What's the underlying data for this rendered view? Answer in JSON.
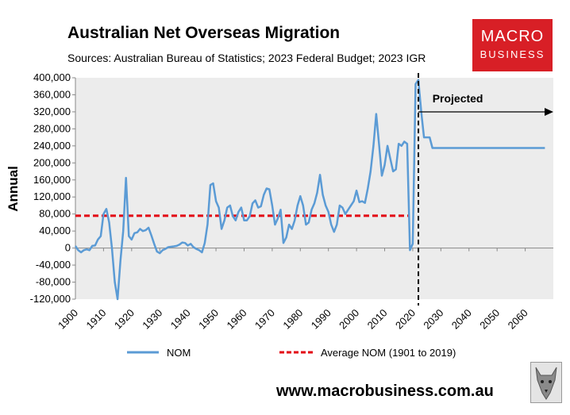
{
  "header": {
    "title": "Australian Net Overseas Migration",
    "subtitle": "Sources: Australian Bureau of Statistics; 2023 Federal Budget; 2023 IGR"
  },
  "logo": {
    "line1": "MACRO",
    "line2": "BUSINESS"
  },
  "footer": {
    "website": "www.macrobusiness.com.au"
  },
  "colors": {
    "series": "#5b9bd5",
    "average": "#e30613",
    "plot_bg": "#ececec",
    "logo_bg": "#d81f26"
  },
  "chart_data": {
    "type": "line",
    "title": "Australian Net Overseas Migration",
    "ylabel": "Annual",
    "xlabel": "",
    "ylim": [
      -120000,
      400000
    ],
    "xlim": [
      1900,
      2070
    ],
    "x_ticks": [
      "1900",
      "1910",
      "1920",
      "1930",
      "1940",
      "1950",
      "1960",
      "1970",
      "1980",
      "1990",
      "2000",
      "2010",
      "2020",
      "2030",
      "2040",
      "2050",
      "2060"
    ],
    "y_ticks": [
      "400,000",
      "360,000",
      "320,000",
      "280,000",
      "240,000",
      "200,000",
      "160,000",
      "120,000",
      "80,000",
      "40,000",
      "0",
      "-40,000",
      "-80,000",
      "-120,000"
    ],
    "series": [
      {
        "name": "NOM",
        "style": "solid",
        "x": [
          1900,
          1901,
          1902,
          1903,
          1904,
          1905,
          1906,
          1907,
          1908,
          1909,
          1910,
          1911,
          1912,
          1913,
          1914,
          1915,
          1916,
          1917,
          1918,
          1919,
          1920,
          1921,
          1922,
          1923,
          1924,
          1925,
          1926,
          1927,
          1928,
          1929,
          1930,
          1931,
          1932,
          1933,
          1934,
          1935,
          1936,
          1937,
          1938,
          1939,
          1940,
          1941,
          1942,
          1943,
          1944,
          1945,
          1946,
          1947,
          1948,
          1949,
          1950,
          1951,
          1952,
          1953,
          1954,
          1955,
          1956,
          1957,
          1958,
          1959,
          1960,
          1961,
          1962,
          1963,
          1964,
          1965,
          1966,
          1967,
          1968,
          1969,
          1970,
          1971,
          1972,
          1973,
          1974,
          1975,
          1976,
          1977,
          1978,
          1979,
          1980,
          1981,
          1982,
          1983,
          1984,
          1985,
          1986,
          1987,
          1988,
          1989,
          1990,
          1991,
          1992,
          1993,
          1994,
          1995,
          1996,
          1997,
          1998,
          1999,
          2000,
          2001,
          2002,
          2003,
          2004,
          2005,
          2006,
          2007,
          2008,
          2009,
          2010,
          2011,
          2012,
          2013,
          2014,
          2015,
          2016,
          2017,
          2018,
          2019,
          2020,
          2021,
          2022,
          2023,
          2024,
          2025,
          2026,
          2027,
          2030,
          2040,
          2050,
          2060,
          2067
        ],
        "y": [
          5000,
          -5000,
          -10000,
          -5000,
          -3000,
          -5000,
          5000,
          6000,
          20000,
          28000,
          80000,
          92000,
          60000,
          0,
          -80000,
          -120000,
          -30000,
          40000,
          165000,
          28000,
          20000,
          35000,
          37000,
          45000,
          40000,
          42000,
          48000,
          30000,
          10000,
          -8000,
          -12000,
          -5000,
          -2000,
          2000,
          3000,
          4000,
          5000,
          8000,
          13000,
          12000,
          6000,
          10000,
          2000,
          -2000,
          -5000,
          -10000,
          12000,
          55000,
          148000,
          152000,
          110000,
          95000,
          45000,
          65000,
          95000,
          100000,
          75000,
          65000,
          85000,
          95000,
          65000,
          65000,
          75000,
          105000,
          112000,
          95000,
          98000,
          125000,
          140000,
          138000,
          100000,
          55000,
          70000,
          90000,
          12000,
          25000,
          55000,
          45000,
          65000,
          100000,
          122000,
          100000,
          55000,
          60000,
          90000,
          105000,
          130000,
          172000,
          125000,
          100000,
          85000,
          55000,
          38000,
          55000,
          100000,
          95000,
          80000,
          90000,
          100000,
          110000,
          135000,
          108000,
          110000,
          106000,
          140000,
          180000,
          240000,
          315000,
          245000,
          170000,
          195000,
          240000,
          210000,
          180000,
          185000,
          245000,
          240000,
          250000,
          245000,
          -5000,
          10000,
          385000,
          395000,
          320000,
          260000,
          260000,
          260000,
          235000,
          235000,
          235000,
          235000,
          235000,
          235000
        ]
      },
      {
        "name": "Average NOM (1901 to 2019)",
        "style": "dashed",
        "x": [
          1900,
          2019
        ],
        "y": [
          76000,
          76000
        ]
      }
    ],
    "annotations": [
      {
        "text": "Projected",
        "x": 2036,
        "y": 352000
      }
    ],
    "forecast_divider_year": 2022,
    "legend": {
      "position": "bottom",
      "entries": [
        "NOM",
        "Average NOM (1901 to 2019)"
      ]
    },
    "grid": false
  }
}
